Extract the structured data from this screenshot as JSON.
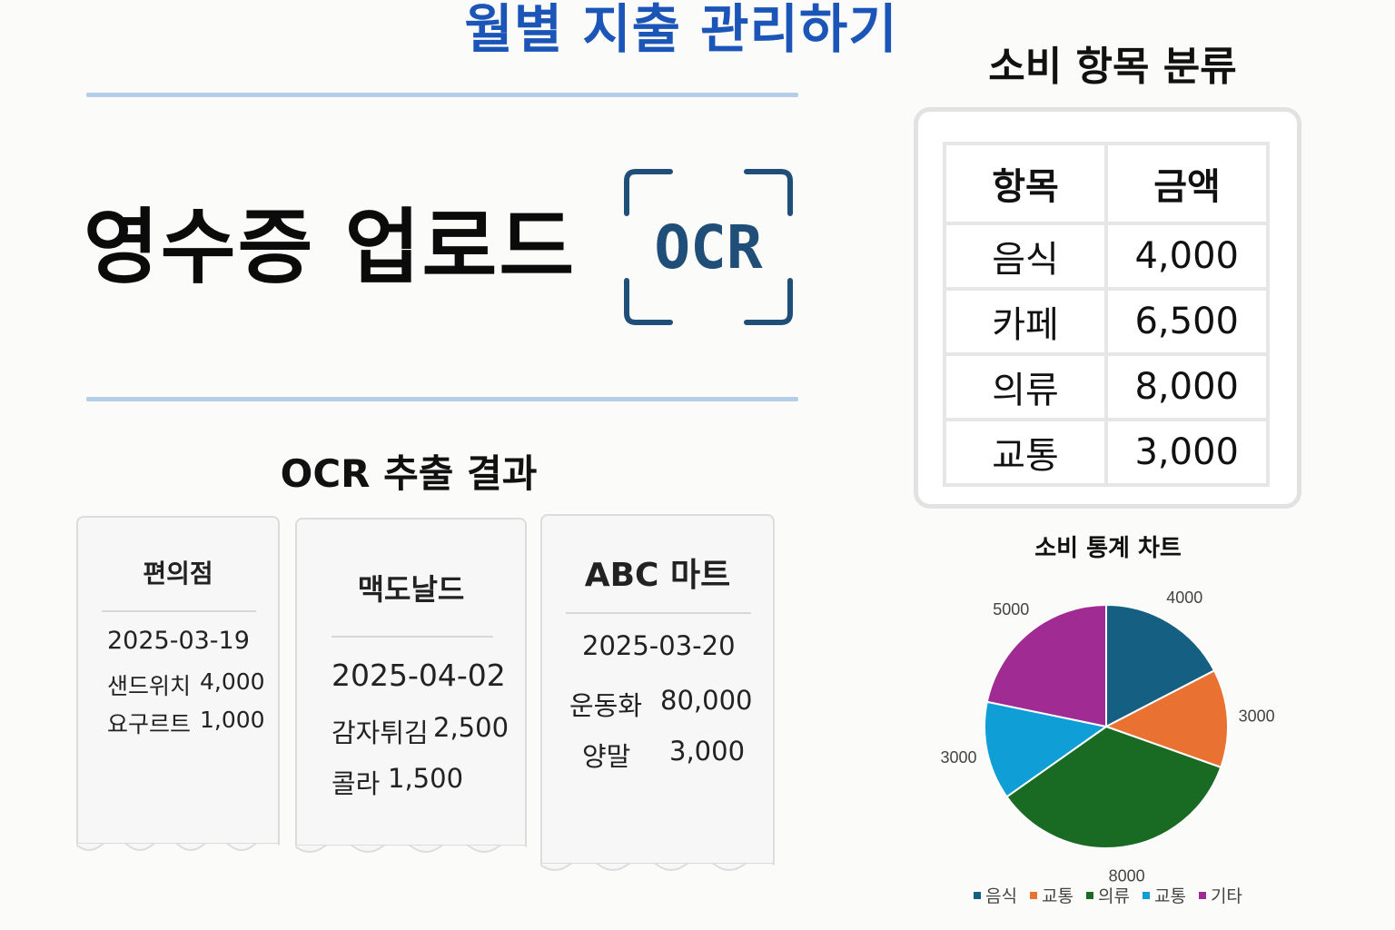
{
  "header": {
    "title": "월별 지출 관리하기"
  },
  "upload": {
    "title": "영수증 업로드",
    "ocr_badge": "OCR"
  },
  "ocr_result": {
    "title": "OCR 추출 결과",
    "receipts": [
      {
        "store": "편의점",
        "date": "2025-03-19",
        "items": [
          {
            "name": "샌드위치",
            "price": "4,000"
          },
          {
            "name": "요구르트",
            "price": "1,000"
          }
        ]
      },
      {
        "store": "맥도날드",
        "date": "2025-04-02",
        "items": [
          {
            "name": "감자튀김",
            "price": "2,500"
          },
          {
            "name": "콜라",
            "price": "1,500"
          }
        ]
      },
      {
        "store": "ABC 마트",
        "date": "2025-03-20",
        "items": [
          {
            "name": "운동화",
            "price": "80,000"
          },
          {
            "name": "양말",
            "price": "3,000"
          }
        ]
      }
    ]
  },
  "classification": {
    "title": "소비 항목 분류",
    "headers": [
      "항목",
      "금액"
    ],
    "rows": [
      {
        "category": "음식",
        "amount": "4,000"
      },
      {
        "category": "카페",
        "amount": "6,500"
      },
      {
        "category": "의류",
        "amount": "8,000"
      },
      {
        "category": "교통",
        "amount": "3,000"
      }
    ]
  },
  "chart_data": {
    "type": "pie",
    "title": "소비 통계 차트",
    "categories": [
      "음식",
      "교통",
      "의류",
      "교통",
      "기타"
    ],
    "values": [
      4000,
      3000,
      8000,
      3000,
      5000
    ],
    "colors": [
      "#155f82",
      "#e97132",
      "#196b24",
      "#0f9ed5",
      "#a02b93"
    ],
    "legend_position": "bottom"
  }
}
